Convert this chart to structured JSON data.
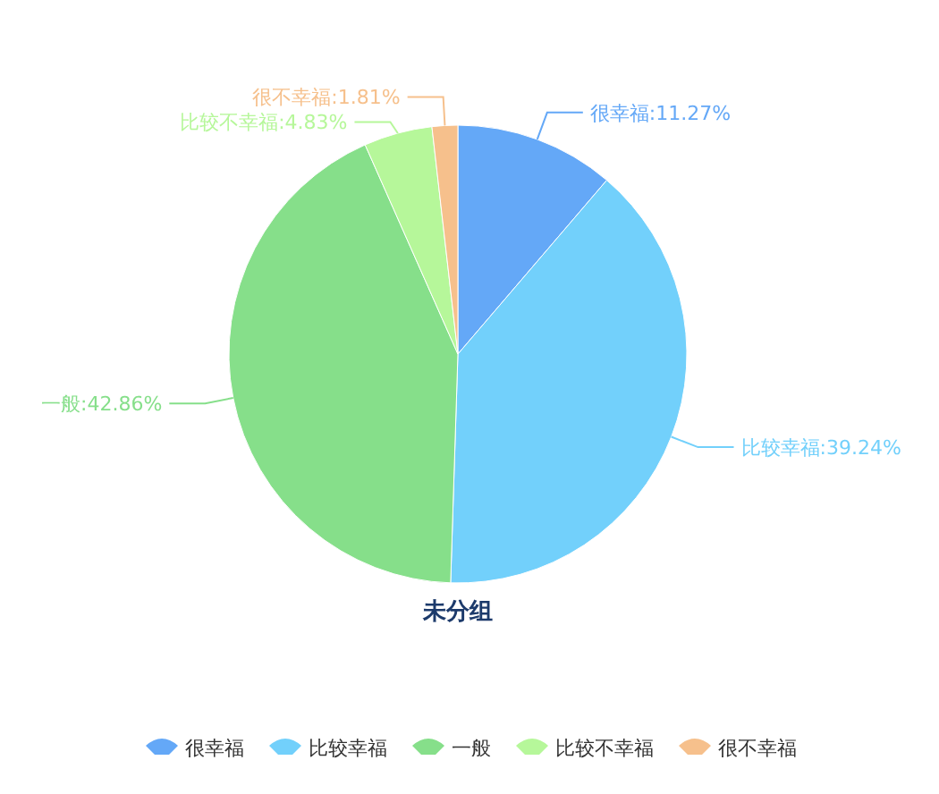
{
  "chart_data": {
    "type": "pie",
    "title": "未分组",
    "categories": [
      "很幸福",
      "比较幸福",
      "一般",
      "比较不幸福",
      "很不幸福"
    ],
    "values": [
      11.27,
      39.24,
      42.86,
      4.83,
      1.81
    ],
    "colors": [
      "#64a8f7",
      "#72d0fb",
      "#86df8a",
      "#b6f79a",
      "#f6c08c"
    ],
    "value_labels": [
      "很幸福:11.27%",
      "比较幸福:39.24%",
      "一般:42.86%",
      "比较不幸福:4.83%",
      "很不幸福:1.81%"
    ],
    "legend": "bottom"
  }
}
